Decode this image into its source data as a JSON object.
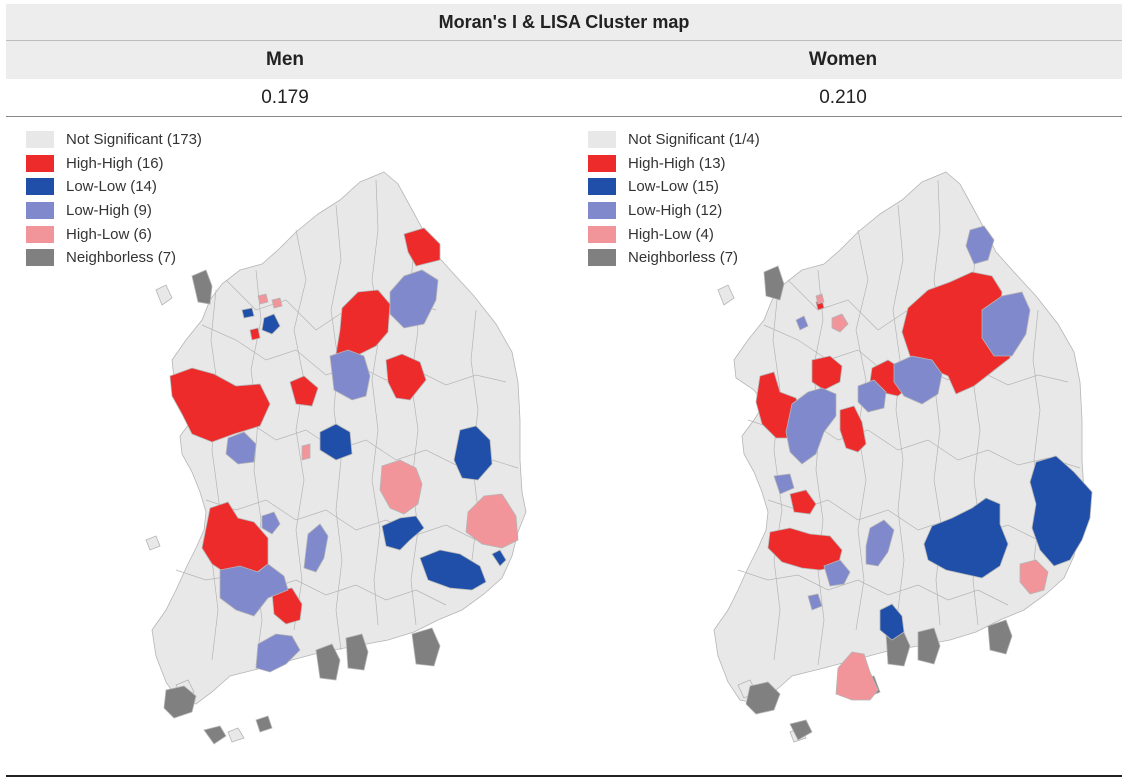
{
  "title": "Moran's I & LISA Cluster map",
  "columns": [
    {
      "label": "Men",
      "morans_i": "0.179"
    },
    {
      "label": "Women",
      "morans_i": "0.210"
    }
  ],
  "colors": {
    "not_significant": "#e8e8e8",
    "high_high": "#ee2b2b",
    "low_low": "#1f4fa8",
    "low_high": "#8089cc",
    "high_low": "#f2959a",
    "neighborless": "#808080",
    "boundary": "#b5b5b5"
  },
  "legend_men": [
    {
      "label": "Not Significant (173)",
      "color": "#e8e8e8"
    },
    {
      "label": "High-High (16)",
      "color": "#ee2b2b"
    },
    {
      "label": "Low-Low (14)",
      "color": "#1f4fa8"
    },
    {
      "label": "Low-High (9)",
      "color": "#8089cc"
    },
    {
      "label": "High-Low (6)",
      "color": "#f2959a"
    },
    {
      "label": "Neighborless (7)",
      "color": "#808080"
    }
  ],
  "legend_women": [
    {
      "label": "Not Significant (1/4)",
      "color": "#e8e8e8"
    },
    {
      "label": "High-High (13)",
      "color": "#ee2b2b"
    },
    {
      "label": "Low-Low (15)",
      "color": "#1f4fa8"
    },
    {
      "label": "Low-High (12)",
      "color": "#8089cc"
    },
    {
      "label": "High-Low (4)",
      "color": "#f2959a"
    },
    {
      "label": "Neighborless (7)",
      "color": "#808080"
    }
  ]
}
